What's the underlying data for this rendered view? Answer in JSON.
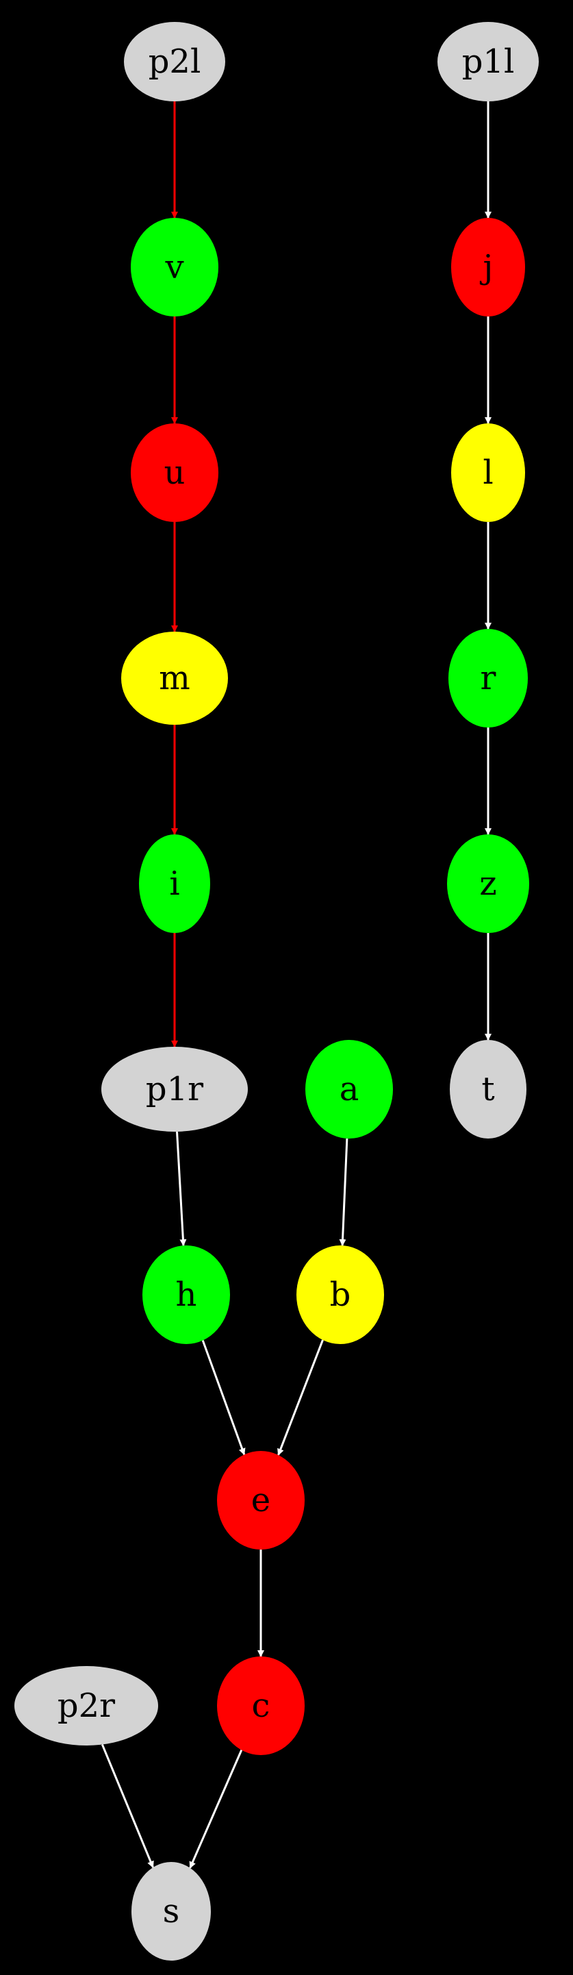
{
  "diagram": {
    "background": "#000000",
    "default_node_fill": "#d3d3d3",
    "default_edge_color": "#ffffff",
    "highlight_edge_color": "#ff0000",
    "nodes": [
      {
        "id": "p2l",
        "label": "p2l",
        "fill": "#d3d3d3"
      },
      {
        "id": "v",
        "label": "v",
        "fill": "#00ff00"
      },
      {
        "id": "u",
        "label": "u",
        "fill": "#ff0000"
      },
      {
        "id": "m",
        "label": "m",
        "fill": "#ffff00"
      },
      {
        "id": "i",
        "label": "i",
        "fill": "#00ff00"
      },
      {
        "id": "p1r",
        "label": "p1r",
        "fill": "#d3d3d3"
      },
      {
        "id": "h",
        "label": "h",
        "fill": "#00ff00"
      },
      {
        "id": "a",
        "label": "a",
        "fill": "#00ff00"
      },
      {
        "id": "b",
        "label": "b",
        "fill": "#ffff00"
      },
      {
        "id": "e",
        "label": "e",
        "fill": "#ff0000"
      },
      {
        "id": "c",
        "label": "c",
        "fill": "#ff0000"
      },
      {
        "id": "p2r",
        "label": "p2r",
        "fill": "#d3d3d3"
      },
      {
        "id": "s",
        "label": "s",
        "fill": "#d3d3d3"
      },
      {
        "id": "p1l",
        "label": "p1l",
        "fill": "#d3d3d3"
      },
      {
        "id": "j",
        "label": "j",
        "fill": "#ff0000"
      },
      {
        "id": "l",
        "label": "l",
        "fill": "#ffff00"
      },
      {
        "id": "r",
        "label": "r",
        "fill": "#00ff00"
      },
      {
        "id": "z",
        "label": "z",
        "fill": "#00ff00"
      },
      {
        "id": "t",
        "label": "t",
        "fill": "#d3d3d3"
      }
    ],
    "edges": [
      {
        "from": "p2l",
        "to": "v",
        "color": "#ff0000"
      },
      {
        "from": "v",
        "to": "u",
        "color": "#ff0000"
      },
      {
        "from": "u",
        "to": "m",
        "color": "#ff0000"
      },
      {
        "from": "m",
        "to": "i",
        "color": "#ff0000"
      },
      {
        "from": "i",
        "to": "p1r",
        "color": "#ff0000"
      },
      {
        "from": "p1r",
        "to": "h",
        "color": "#ffffff"
      },
      {
        "from": "a",
        "to": "b",
        "color": "#ffffff"
      },
      {
        "from": "h",
        "to": "e",
        "color": "#ffffff"
      },
      {
        "from": "b",
        "to": "e",
        "color": "#ffffff"
      },
      {
        "from": "e",
        "to": "c",
        "color": "#ffffff"
      },
      {
        "from": "p2r",
        "to": "s",
        "color": "#ffffff"
      },
      {
        "from": "c",
        "to": "s",
        "color": "#ffffff"
      },
      {
        "from": "p1l",
        "to": "j",
        "color": "#ffffff"
      },
      {
        "from": "j",
        "to": "l",
        "color": "#ffffff"
      },
      {
        "from": "l",
        "to": "r",
        "color": "#ffffff"
      },
      {
        "from": "r",
        "to": "z",
        "color": "#ffffff"
      },
      {
        "from": "z",
        "to": "t",
        "color": "#ffffff"
      }
    ]
  }
}
